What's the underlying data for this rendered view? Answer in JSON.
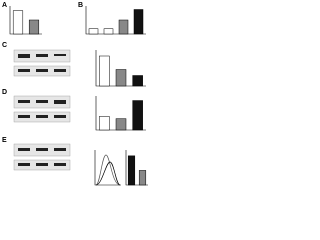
{
  "panels": [
    {
      "label": "A",
      "values": [
        1.0,
        0.6
      ],
      "colors": [
        "#ffffff",
        "#888888"
      ],
      "ylim": [
        0,
        1.2
      ]
    },
    {
      "label": "B",
      "values": [
        0.3,
        0.3,
        0.8,
        1.4
      ],
      "colors": [
        "#ffffff",
        "#ffffff",
        "#888888",
        "#111111"
      ],
      "ylim": [
        0,
        1.6
      ]
    },
    {
      "label": "C",
      "values": [
        1.0,
        0.55,
        0.35
      ],
      "colors": [
        "#ffffff",
        "#888888",
        "#111111"
      ],
      "ylim": [
        0,
        1.2
      ]
    },
    {
      "label": "D",
      "values": [
        0.6,
        0.5,
        1.3
      ],
      "colors": [
        "#ffffff",
        "#888888",
        "#111111"
      ],
      "ylim": [
        0,
        1.5
      ]
    },
    {
      "label": "E",
      "values": [
        1.0,
        0.5
      ],
      "colors": [
        "#111111",
        "#888888"
      ],
      "ylim": [
        0,
        1.2
      ]
    }
  ]
}
